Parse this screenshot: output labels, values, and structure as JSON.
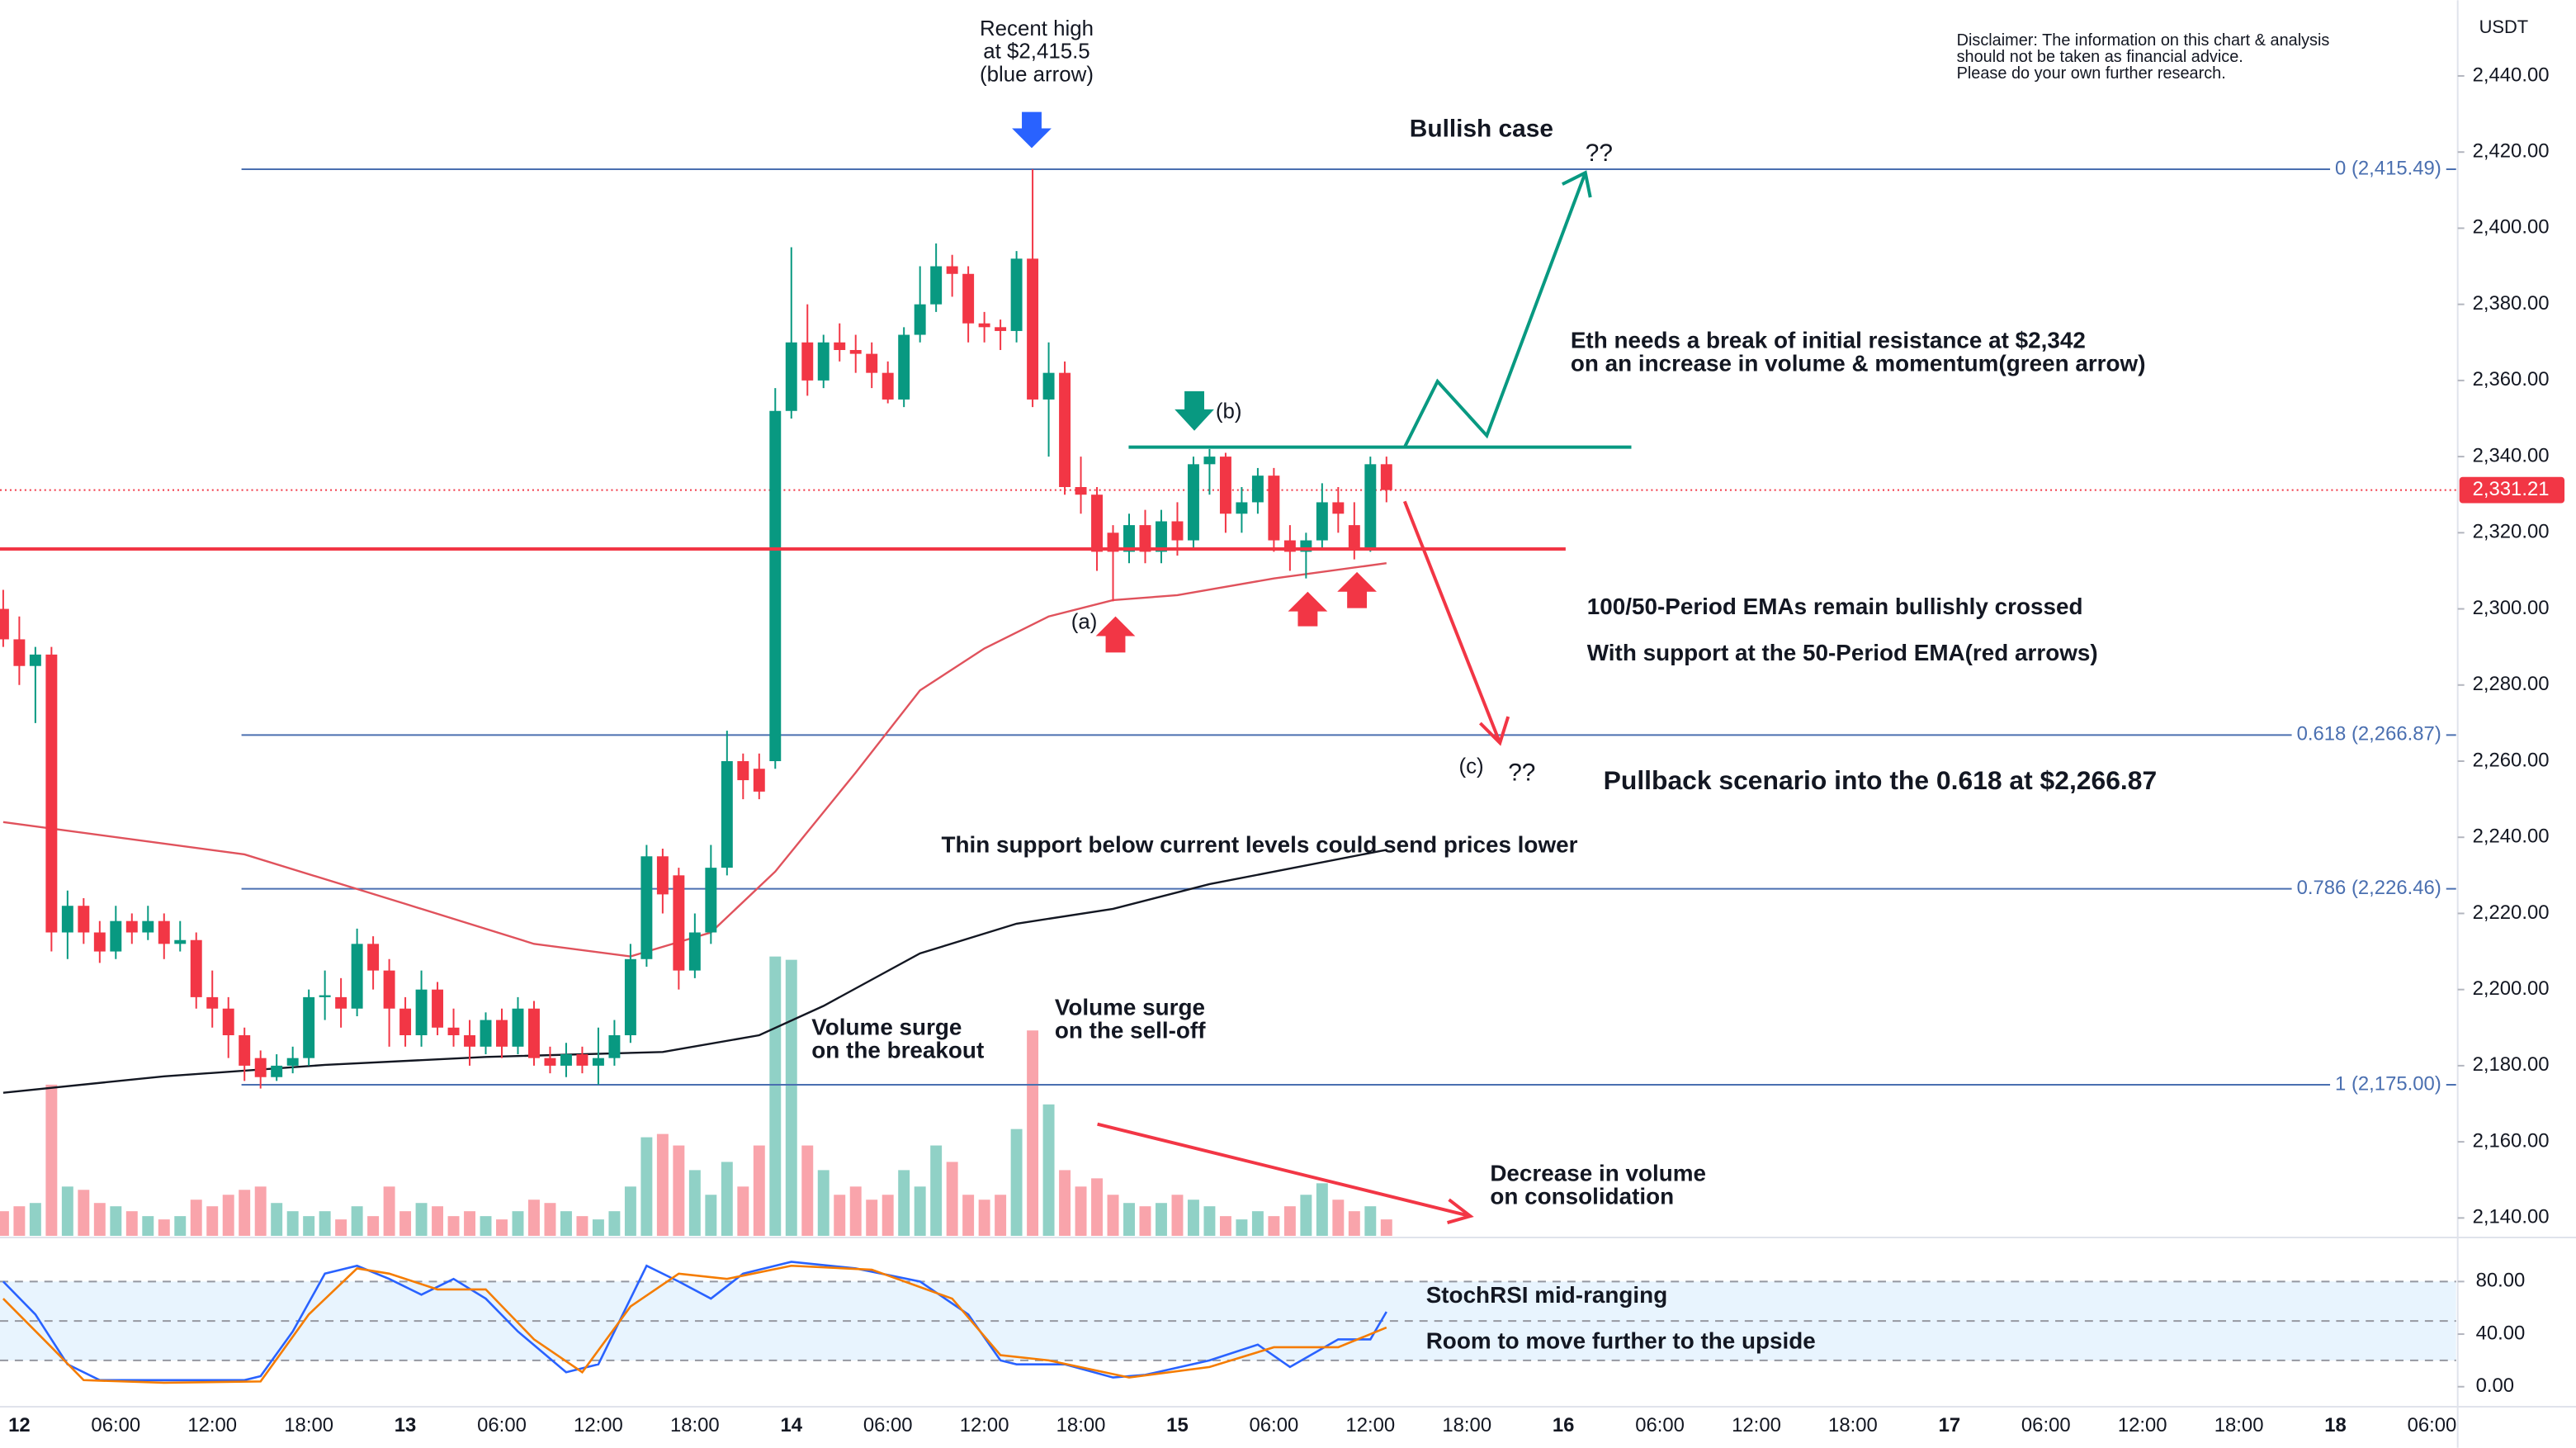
{
  "chart_data": {
    "type": "candlestick",
    "currency": "USDT",
    "xlim": [
      -1.2,
      151.5
    ],
    "ylim": [
      2135.3,
      2459.9
    ],
    "xticks": [
      {
        "value": 0,
        "label": "12"
      },
      {
        "value": 6,
        "label": "06:00"
      },
      {
        "value": 12,
        "label": "12:00"
      },
      {
        "value": 18,
        "label": "18:00"
      },
      {
        "value": 24,
        "label": "13"
      },
      {
        "value": 30,
        "label": "06:00"
      },
      {
        "value": 36,
        "label": "12:00"
      },
      {
        "value": 42,
        "label": "18:00"
      },
      {
        "value": 48,
        "label": "14"
      },
      {
        "value": 54,
        "label": "06:00"
      },
      {
        "value": 60,
        "label": "12:00"
      },
      {
        "value": 66,
        "label": "18:00"
      },
      {
        "value": 72,
        "label": "15"
      },
      {
        "value": 78,
        "label": "06:00"
      },
      {
        "value": 84,
        "label": "12:00"
      },
      {
        "value": 90,
        "label": "18:00"
      },
      {
        "value": 96,
        "label": "16"
      },
      {
        "value": 102,
        "label": "06:00"
      },
      {
        "value": 108,
        "label": "12:00"
      },
      {
        "value": 114,
        "label": "18:00"
      },
      {
        "value": 120,
        "label": "17"
      },
      {
        "value": 126,
        "label": "06:00"
      },
      {
        "value": 132,
        "label": "12:00"
      },
      {
        "value": 138,
        "label": "18:00"
      },
      {
        "value": 144,
        "label": "18"
      },
      {
        "value": 150,
        "label": "06:00"
      }
    ],
    "yticks": [
      {
        "value": 2140,
        "label": "2,140.00"
      },
      {
        "value": 2160,
        "label": "2,160.00"
      },
      {
        "value": 2180,
        "label": "2,180.00"
      },
      {
        "value": 2200,
        "label": "2,200.00"
      },
      {
        "value": 2220,
        "label": "2,220.00"
      },
      {
        "value": 2240,
        "label": "2,240.00"
      },
      {
        "value": 2260,
        "label": "2,260.00"
      },
      {
        "value": 2280,
        "label": "2,280.00"
      },
      {
        "value": 2300,
        "label": "2,300.00"
      },
      {
        "value": 2320,
        "label": "2,320.00"
      },
      {
        "value": 2340,
        "label": "2,340.00"
      },
      {
        "value": 2360,
        "label": "2,360.00"
      },
      {
        "value": 2380,
        "label": "2,380.00"
      },
      {
        "value": 2400,
        "label": "2,400.00"
      },
      {
        "value": 2420,
        "label": "2,420.00"
      },
      {
        "value": 2440,
        "label": "2,440.00"
      }
    ],
    "grid": true,
    "up_color": "#089981",
    "down_color": "#f23645",
    "x": [
      -1,
      0,
      1,
      2,
      3,
      4,
      5,
      6,
      7,
      8,
      9,
      10,
      11,
      12,
      13,
      14,
      15,
      16,
      17,
      18,
      19,
      20,
      21,
      22,
      23,
      24,
      25,
      26,
      27,
      28,
      29,
      30,
      31,
      32,
      33,
      34,
      35,
      36,
      37,
      38,
      39,
      40,
      41,
      42,
      43,
      44,
      45,
      46,
      47,
      48,
      49,
      50,
      51,
      52,
      53,
      54,
      55,
      56,
      57,
      58,
      59,
      60,
      61,
      62,
      63,
      64,
      65,
      66,
      67,
      68,
      69,
      70,
      71,
      72,
      73,
      74,
      75,
      76,
      77,
      78,
      79,
      80,
      81,
      82,
      83,
      84,
      85
    ],
    "open": [
      2300,
      2292,
      2285,
      2288,
      2215,
      2222,
      2215,
      2210,
      2218,
      2215,
      2218,
      2212,
      2213,
      2198,
      2195,
      2188,
      2182,
      2177,
      2180,
      2182,
      2198,
      2198,
      2195,
      2212,
      2205,
      2195,
      2188,
      2200,
      2190,
      2188,
      2185,
      2192,
      2185,
      2195,
      2182,
      2180,
      2183,
      2180,
      2182,
      2188,
      2208,
      2235,
      2230,
      2205,
      2215,
      2232,
      2260,
      2258,
      2260,
      2352,
      2370,
      2360,
      2370,
      2368,
      2367,
      2362,
      2355,
      2372,
      2380,
      2390,
      2388,
      2375,
      2374,
      2373,
      2392,
      2355,
      2362,
      2332,
      2330,
      2320,
      2315,
      2322,
      2315,
      2323,
      2318,
      2338,
      2340,
      2325,
      2328,
      2335,
      2318,
      2315,
      2318,
      2328,
      2322,
      2316,
      2338
    ],
    "high": [
      2305,
      2298,
      2290,
      2290,
      2226,
      2224,
      2218,
      2222,
      2220,
      2222,
      2220,
      2218,
      2215,
      2205,
      2198,
      2190,
      2184,
      2183,
      2185,
      2200,
      2205,
      2203,
      2216,
      2214,
      2208,
      2198,
      2205,
      2202,
      2195,
      2192,
      2194,
      2195,
      2198,
      2197,
      2185,
      2186,
      2185,
      2190,
      2192,
      2212,
      2238,
      2237,
      2232,
      2220,
      2238,
      2268,
      2262,
      2262,
      2358,
      2395,
      2380,
      2372,
      2375,
      2372,
      2370,
      2365,
      2374,
      2390,
      2396,
      2393,
      2390,
      2378,
      2376,
      2394,
      2415.5,
      2370,
      2365,
      2340,
      2332,
      2322,
      2325,
      2326,
      2326,
      2328,
      2340,
      2342,
      2341,
      2332,
      2337,
      2337,
      2322,
      2320,
      2333,
      2332,
      2328,
      2340,
      2340
    ],
    "low": [
      2290,
      2280,
      2270,
      2210,
      2208,
      2212,
      2207,
      2208,
      2212,
      2213,
      2208,
      2210,
      2195,
      2190,
      2182,
      2176,
      2174,
      2176,
      2178,
      2180,
      2192,
      2190,
      2193,
      2200,
      2185,
      2185,
      2185,
      2188,
      2185,
      2180,
      2183,
      2182,
      2183,
      2180,
      2178,
      2177,
      2178,
      2175,
      2180,
      2186,
      2206,
      2220,
      2200,
      2203,
      2212,
      2230,
      2250,
      2250,
      2258,
      2350,
      2356,
      2358,
      2365,
      2362,
      2358,
      2354,
      2353,
      2370,
      2378,
      2382,
      2370,
      2370,
      2368,
      2370,
      2353,
      2340,
      2330,
      2325,
      2310,
      2302,
      2312,
      2312,
      2312,
      2314,
      2316,
      2330,
      2320,
      2320,
      2325,
      2315,
      2310,
      2308,
      2316,
      2320,
      2313,
      2315,
      2328
    ],
    "close": [
      2292,
      2285,
      2288,
      2215,
      2222,
      2215,
      2210,
      2218,
      2215,
      2218,
      2212,
      2213,
      2198,
      2195,
      2188,
      2180,
      2177,
      2180,
      2182,
      2198,
      2198.5,
      2195,
      2212,
      2205,
      2195,
      2188,
      2200,
      2190,
      2188,
      2185,
      2192,
      2185,
      2195,
      2182,
      2180,
      2183,
      2180,
      2182,
      2188,
      2208,
      2235,
      2225,
      2205,
      2215,
      2232,
      2260,
      2255,
      2252,
      2352,
      2370,
      2360,
      2370,
      2368,
      2367,
      2362,
      2355,
      2372,
      2380,
      2390,
      2388,
      2375,
      2374,
      2373,
      2392,
      2355,
      2362,
      2332,
      2330,
      2315,
      2315,
      2322,
      2315,
      2323,
      2318,
      2338,
      2340,
      2325,
      2328,
      2335,
      2318,
      2315,
      2318,
      2328,
      2325,
      2316,
      2338,
      2331.21
    ],
    "volume": [
      15,
      18,
      20,
      92,
      30,
      28,
      20,
      18,
      15,
      12,
      10,
      12,
      22,
      18,
      25,
      28,
      30,
      20,
      15,
      12,
      15,
      10,
      18,
      12,
      30,
      15,
      20,
      18,
      12,
      15,
      12,
      10,
      15,
      22,
      20,
      15,
      12,
      10,
      15,
      30,
      60,
      62,
      55,
      40,
      25,
      45,
      30,
      55,
      170,
      168,
      55,
      40,
      25,
      30,
      22,
      25,
      40,
      30,
      55,
      45,
      25,
      22,
      25,
      65,
      125,
      80,
      40,
      30,
      35,
      25,
      20,
      18,
      20,
      25,
      22,
      18,
      12,
      10,
      15,
      12,
      18,
      25,
      32,
      22,
      15,
      18,
      10
    ],
    "volume_ylim": [
      0,
      752
    ],
    "last_price": {
      "value": 2331.21,
      "label": "2,331.21"
    },
    "series": [
      {
        "name": "EMA 50",
        "color": "#e0525c",
        "x": [
          -1,
          14,
          24,
          32,
          38,
          43,
          47,
          52,
          56,
          60,
          64,
          68,
          72,
          78,
          85
        ],
        "values": [
          2244,
          2235.5,
          2222.5,
          2212,
          2208.7,
          2215,
          2231,
          2257,
          2278.6,
          2289.6,
          2298,
          2302.3,
          2303.6,
          2308,
          2312
        ]
      },
      {
        "name": "EMA 100",
        "color": "#131722",
        "x": [
          -1,
          9,
          19,
          29,
          40,
          46,
          50,
          56,
          62,
          68,
          74,
          85
        ],
        "values": [
          2172.9,
          2177.2,
          2180.2,
          2182.3,
          2183.6,
          2188,
          2195.7,
          2209.5,
          2217.3,
          2221.2,
          2227.7,
          2236.7
        ]
      }
    ],
    "fib_color": "#4a6fb0",
    "fib_levels": [
      {
        "value": 2415.49,
        "label": "0 (2,415.49)"
      },
      {
        "value": 2266.87,
        "label": "0.618 (2,266.87)"
      },
      {
        "value": 2226.46,
        "label": "0.786 (2,226.46)"
      },
      {
        "value": 2175.0,
        "label": "1 (2,175.00)"
      }
    ],
    "stoch_rsi": {
      "ylim": [
        -14,
        111
      ],
      "yticks": [
        {
          "value": 0,
          "label": "0.00"
        },
        {
          "value": 40,
          "label": "40.00"
        },
        {
          "value": 80,
          "label": "80.00"
        }
      ],
      "levels": [
        20,
        50,
        80
      ],
      "series": [
        {
          "name": "K",
          "color": "#2962ff",
          "x": [
            -1,
            1,
            3,
            5,
            9,
            14,
            15,
            17,
            19,
            21,
            23,
            25,
            27,
            29,
            31,
            34,
            36,
            38,
            39,
            41,
            43,
            45,
            48,
            52,
            56,
            59,
            61,
            62,
            65,
            68,
            70,
            74,
            77,
            79,
            82,
            84,
            85
          ],
          "values": [
            80,
            55,
            17,
            5,
            5,
            5,
            8,
            42,
            86,
            92,
            82,
            70,
            82,
            67,
            42,
            11,
            17,
            67,
            92,
            80,
            67,
            86,
            95,
            90,
            80,
            55,
            20,
            17,
            17,
            7,
            9,
            20,
            32,
            15,
            36,
            36,
            57
          ]
        },
        {
          "name": "D",
          "color": "#f57c00",
          "x": [
            -1,
            2,
            4,
            9,
            15,
            18,
            21,
            23,
            26,
            29,
            32,
            35,
            38,
            41,
            44,
            48,
            53,
            58,
            61,
            64,
            69,
            74,
            78,
            82,
            85
          ],
          "values": [
            67,
            30,
            5,
            3,
            4,
            55,
            90,
            86,
            74,
            74,
            36,
            11,
            61,
            86,
            82,
            92,
            89,
            67,
            24,
            20,
            7,
            15,
            30,
            30,
            45
          ]
        }
      ]
    },
    "annotations": {
      "recent_high": [
        "Recent high",
        "at $2,415.5",
        "(blue arrow)"
      ],
      "bullish_case": "Bullish case",
      "question_top": "??",
      "question_bottom": "??",
      "wave_a": "(a)",
      "wave_b": "(b)",
      "wave_c": "(c)",
      "resistance_note": [
        "Eth needs a break of initial resistance at $2,342",
        "on an increase in volume & momentum(green arrow)"
      ],
      "ema_note": [
        "100/50-Period EMAs remain bullishly crossed",
        "With support at the 50-Period EMA(red arrows)"
      ],
      "pullback_note": "Pullback scenario into the 0.618 at $2,266.87",
      "thin_support": "Thin support below current levels could send prices lower",
      "volume_breakout": [
        "Volume surge",
        "on the breakout"
      ],
      "volume_selloff": [
        "Volume surge",
        "on the sell-off"
      ],
      "volume_decrease": [
        "Decrease in volume",
        "on consolidation"
      ],
      "stoch_note": [
        "StochRSI mid-ranging",
        "Room to move further to the upside"
      ],
      "disclaimer": [
        "Disclaimer: The information on this chart & analysis",
        "should not be taken as financial advice.",
        "Please do your own further research."
      ]
    }
  }
}
